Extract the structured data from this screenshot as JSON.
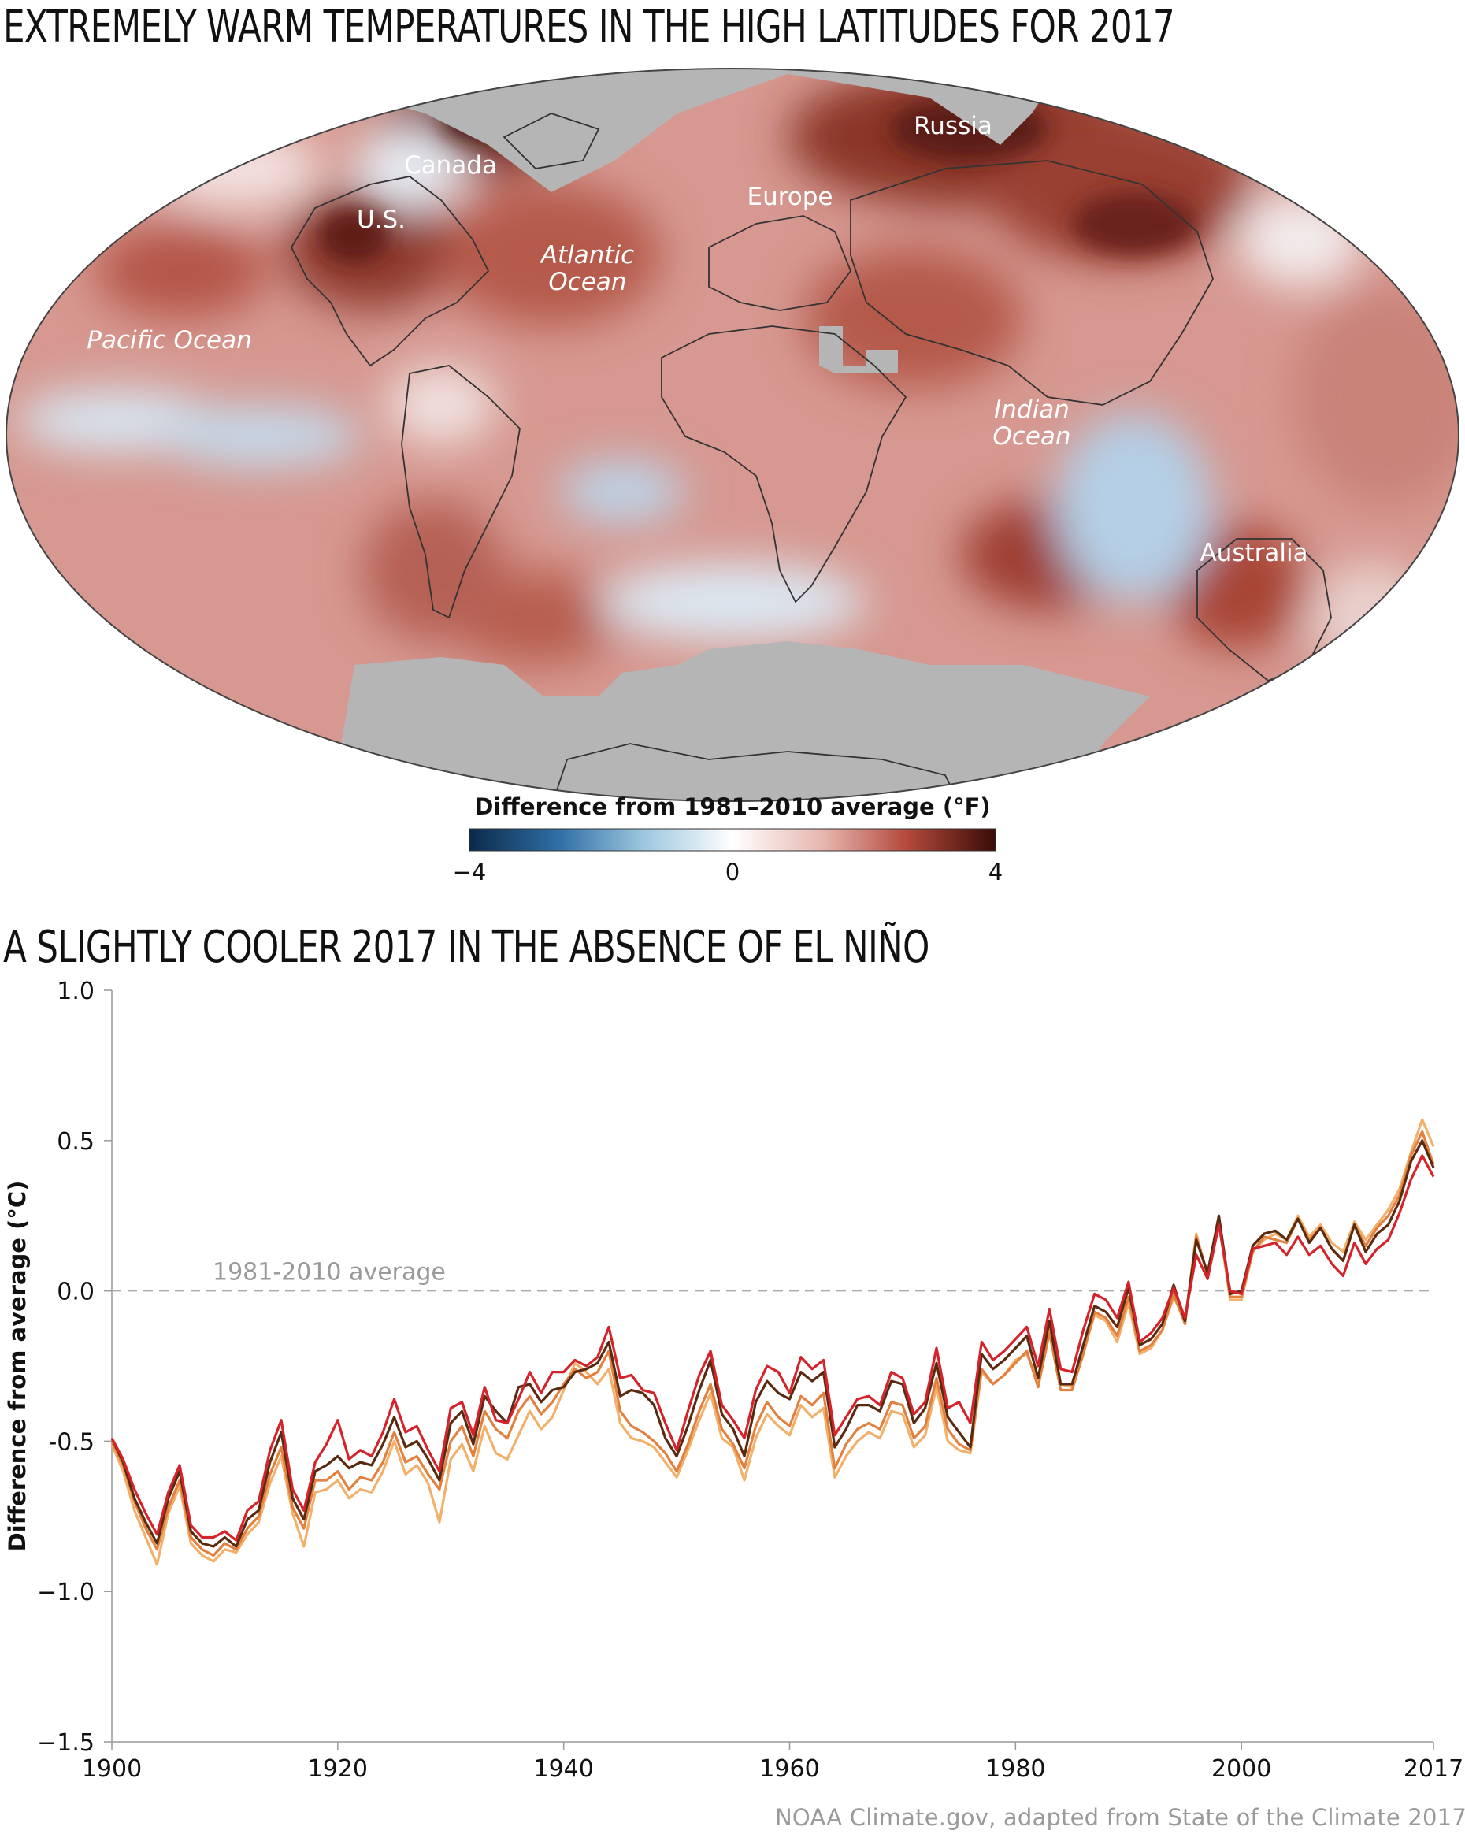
{
  "map": {
    "title": "EXTREMELY WARM TEMPERATURES IN THE HIGH LATITUDES FOR 2017",
    "labels": {
      "canada": "Canada",
      "us": "U.S.",
      "russia": "Russia",
      "europe": "Europe",
      "atlantic_1": "Atlantic",
      "atlantic_2": "Ocean",
      "pacific": "Pacific Ocean",
      "indian_1": "Indian",
      "indian_2": "Ocean",
      "australia": "Australia"
    },
    "colorbar": {
      "title": "Difference from 1981–2010 average (°F)",
      "min_label": "−4",
      "mid_label": "0",
      "max_label": "4",
      "colors": [
        "#0b2a4a",
        "#2f6fa6",
        "#9cc6de",
        "#ffffff",
        "#e7b7b0",
        "#b54a3d",
        "#3a0c06"
      ]
    },
    "colors": {
      "warm": "#c9736a",
      "cool": "#c8dcea",
      "land_missing": "#b5b5b5",
      "outline": "#333333"
    }
  },
  "chart": {
    "title": "A SLIGHTLY COOLER 2017 IN THE ABSENCE OF EL NIÑO",
    "reference_label": "1981-2010 average",
    "source": "NOAA Climate.gov, adapted from State of the Climate 2017"
  },
  "chart_data": {
    "type": "line",
    "ylabel": "Difference from average (°C)",
    "xlabel": "",
    "xlim": [
      1900,
      2017
    ],
    "ylim": [
      -1.5,
      1.0
    ],
    "xticks": [
      1900,
      1920,
      1940,
      1960,
      1980,
      2000,
      2017
    ],
    "xtick_labels": [
      "1900",
      "1920",
      "1940",
      "1960",
      "1980",
      "2000",
      "2017"
    ],
    "yticks": [
      -1.5,
      -1.0,
      -0.5,
      0.0,
      0.5,
      1.0
    ],
    "ytick_labels": [
      "−1.5",
      "−1.0",
      "-0.5",
      "0.0",
      "0.5",
      "1.0"
    ],
    "reference_line": 0.0,
    "grid": false,
    "legend": "none",
    "series": [
      {
        "color": "#d4232a",
        "x_start": 1900,
        "values": [
          -0.49,
          -0.56,
          -0.66,
          -0.74,
          -0.81,
          -0.67,
          -0.58,
          -0.78,
          -0.82,
          -0.82,
          -0.8,
          -0.83,
          -0.73,
          -0.7,
          -0.53,
          -0.43,
          -0.66,
          -0.73,
          -0.57,
          -0.51,
          -0.43,
          -0.56,
          -0.53,
          -0.55,
          -0.47,
          -0.36,
          -0.47,
          -0.45,
          -0.53,
          -0.6,
          -0.39,
          -0.37,
          -0.48,
          -0.32,
          -0.43,
          -0.44,
          -0.36,
          -0.27,
          -0.34,
          -0.27,
          -0.27,
          -0.23,
          -0.25,
          -0.22,
          -0.12,
          -0.29,
          -0.28,
          -0.33,
          -0.34,
          -0.44,
          -0.53,
          -0.4,
          -0.28,
          -0.2,
          -0.38,
          -0.43,
          -0.49,
          -0.33,
          -0.25,
          -0.27,
          -0.34,
          -0.22,
          -0.26,
          -0.23,
          -0.48,
          -0.42,
          -0.36,
          -0.35,
          -0.38,
          -0.27,
          -0.29,
          -0.41,
          -0.37,
          -0.19,
          -0.39,
          -0.37,
          -0.44,
          -0.17,
          -0.23,
          -0.2,
          -0.16,
          -0.12,
          -0.25,
          -0.06,
          -0.26,
          -0.27,
          -0.13,
          -0.01,
          -0.03,
          -0.09,
          0.03,
          -0.17,
          -0.14,
          -0.09,
          0.01,
          -0.09,
          0.12,
          0.04,
          0.22,
          0.0,
          -0.01,
          0.14,
          0.15,
          0.16,
          0.12,
          0.18,
          0.12,
          0.15,
          0.09,
          0.05,
          0.16,
          0.09,
          0.14,
          0.17,
          0.26,
          0.37,
          0.45,
          0.38
        ]
      },
      {
        "color": "#5a2a10",
        "x_start": 1900,
        "values": [
          -0.49,
          -0.57,
          -0.69,
          -0.77,
          -0.84,
          -0.69,
          -0.6,
          -0.8,
          -0.84,
          -0.85,
          -0.82,
          -0.85,
          -0.76,
          -0.73,
          -0.57,
          -0.47,
          -0.69,
          -0.76,
          -0.6,
          -0.58,
          -0.55,
          -0.59,
          -0.57,
          -0.58,
          -0.51,
          -0.42,
          -0.52,
          -0.5,
          -0.56,
          -0.63,
          -0.44,
          -0.4,
          -0.51,
          -0.35,
          -0.4,
          -0.44,
          -0.32,
          -0.31,
          -0.37,
          -0.33,
          -0.32,
          -0.27,
          -0.26,
          -0.24,
          -0.17,
          -0.35,
          -0.33,
          -0.34,
          -0.38,
          -0.49,
          -0.55,
          -0.45,
          -0.33,
          -0.23,
          -0.41,
          -0.46,
          -0.55,
          -0.37,
          -0.3,
          -0.34,
          -0.36,
          -0.27,
          -0.3,
          -0.27,
          -0.52,
          -0.46,
          -0.38,
          -0.38,
          -0.4,
          -0.3,
          -0.31,
          -0.44,
          -0.39,
          -0.24,
          -0.42,
          -0.47,
          -0.52,
          -0.21,
          -0.26,
          -0.23,
          -0.19,
          -0.15,
          -0.29,
          -0.1,
          -0.31,
          -0.31,
          -0.18,
          -0.05,
          -0.07,
          -0.12,
          0.01,
          -0.18,
          -0.16,
          -0.11,
          0.02,
          -0.1,
          0.17,
          0.06,
          0.25,
          -0.01,
          0.0,
          0.15,
          0.19,
          0.2,
          0.17,
          0.24,
          0.16,
          0.21,
          0.14,
          0.1,
          0.22,
          0.13,
          0.19,
          0.22,
          0.3,
          0.43,
          0.5,
          0.41
        ]
      },
      {
        "color": "#e2803f",
        "x_start": 1900,
        "values": [
          -0.5,
          -0.58,
          -0.7,
          -0.79,
          -0.86,
          -0.72,
          -0.63,
          -0.82,
          -0.86,
          -0.88,
          -0.84,
          -0.86,
          -0.79,
          -0.75,
          -0.61,
          -0.52,
          -0.72,
          -0.79,
          -0.63,
          -0.63,
          -0.6,
          -0.66,
          -0.62,
          -0.63,
          -0.57,
          -0.47,
          -0.57,
          -0.55,
          -0.61,
          -0.66,
          -0.5,
          -0.45,
          -0.55,
          -0.4,
          -0.46,
          -0.49,
          -0.4,
          -0.35,
          -0.41,
          -0.37,
          -0.31,
          -0.26,
          -0.29,
          -0.27,
          -0.2,
          -0.4,
          -0.45,
          -0.47,
          -0.5,
          -0.54,
          -0.6,
          -0.51,
          -0.4,
          -0.31,
          -0.46,
          -0.51,
          -0.59,
          -0.45,
          -0.37,
          -0.42,
          -0.45,
          -0.35,
          -0.38,
          -0.34,
          -0.59,
          -0.51,
          -0.46,
          -0.44,
          -0.46,
          -0.37,
          -0.38,
          -0.49,
          -0.45,
          -0.29,
          -0.46,
          -0.51,
          -0.53,
          -0.26,
          -0.31,
          -0.28,
          -0.24,
          -0.2,
          -0.32,
          -0.14,
          -0.33,
          -0.33,
          -0.21,
          -0.07,
          -0.09,
          -0.15,
          -0.02,
          -0.2,
          -0.18,
          -0.13,
          -0.01,
          -0.11,
          0.18,
          0.05,
          0.24,
          -0.02,
          -0.02,
          0.13,
          0.18,
          0.17,
          0.16,
          0.24,
          0.17,
          0.21,
          0.14,
          0.1,
          0.22,
          0.15,
          0.21,
          0.25,
          0.32,
          0.45,
          0.53,
          0.42
        ]
      },
      {
        "color": "#f2b06a",
        "x_start": 1900,
        "values": [
          -0.51,
          -0.6,
          -0.73,
          -0.82,
          -0.91,
          -0.74,
          -0.65,
          -0.84,
          -0.88,
          -0.9,
          -0.86,
          -0.87,
          -0.81,
          -0.77,
          -0.64,
          -0.55,
          -0.74,
          -0.85,
          -0.67,
          -0.66,
          -0.63,
          -0.69,
          -0.66,
          -0.67,
          -0.6,
          -0.5,
          -0.61,
          -0.58,
          -0.64,
          -0.77,
          -0.56,
          -0.51,
          -0.6,
          -0.45,
          -0.54,
          -0.56,
          -0.48,
          -0.4,
          -0.46,
          -0.42,
          -0.33,
          -0.24,
          -0.27,
          -0.31,
          -0.26,
          -0.44,
          -0.49,
          -0.5,
          -0.52,
          -0.57,
          -0.62,
          -0.53,
          -0.43,
          -0.34,
          -0.49,
          -0.52,
          -0.63,
          -0.49,
          -0.41,
          -0.45,
          -0.48,
          -0.38,
          -0.42,
          -0.39,
          -0.62,
          -0.55,
          -0.5,
          -0.47,
          -0.49,
          -0.4,
          -0.41,
          -0.52,
          -0.48,
          -0.32,
          -0.5,
          -0.53,
          -0.54,
          -0.27,
          -0.31,
          -0.28,
          -0.23,
          -0.21,
          -0.3,
          -0.13,
          -0.31,
          -0.32,
          -0.2,
          -0.08,
          -0.1,
          -0.17,
          -0.04,
          -0.21,
          -0.19,
          -0.13,
          -0.02,
          -0.1,
          0.19,
          0.05,
          0.23,
          -0.03,
          -0.03,
          0.13,
          0.17,
          0.19,
          0.17,
          0.25,
          0.18,
          0.22,
          0.16,
          0.13,
          0.23,
          0.17,
          0.22,
          0.27,
          0.34,
          0.46,
          0.57,
          0.48
        ]
      }
    ]
  }
}
